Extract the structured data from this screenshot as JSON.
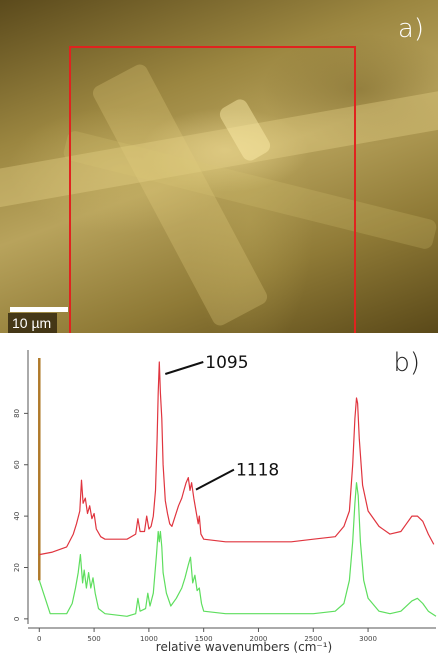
{
  "panel_a": {
    "label": "a)",
    "scale_bar_label": "10 µm",
    "roi_color": "#e0231f"
  },
  "panel_b": {
    "label": "b)",
    "annotation_1095": "1095",
    "annotation_1118": "1118"
  },
  "chart_data": {
    "type": "line",
    "xlabel": "relative wavenumbers (cm⁻¹)",
    "ylabel": "",
    "x_ticks": [
      0,
      500,
      1000,
      1500,
      2000,
      2500,
      3000
    ],
    "y_ticks": [
      0,
      20,
      40,
      60,
      80
    ],
    "xlim": [
      -30,
      3620
    ],
    "ylim": [
      -2,
      100
    ],
    "series": [
      {
        "color": "#e0353f",
        "points": [
          [
            0,
            25
          ],
          [
            120,
            26
          ],
          [
            250,
            28
          ],
          [
            310,
            33
          ],
          [
            340,
            37
          ],
          [
            370,
            42
          ],
          [
            385,
            54
          ],
          [
            400,
            45
          ],
          [
            420,
            47
          ],
          [
            440,
            41
          ],
          [
            460,
            44
          ],
          [
            480,
            39
          ],
          [
            500,
            41
          ],
          [
            520,
            35
          ],
          [
            560,
            32
          ],
          [
            600,
            31
          ],
          [
            700,
            31
          ],
          [
            800,
            31
          ],
          [
            880,
            33
          ],
          [
            900,
            39
          ],
          [
            920,
            34
          ],
          [
            960,
            34
          ],
          [
            980,
            40
          ],
          [
            1000,
            35
          ],
          [
            1020,
            36
          ],
          [
            1040,
            40
          ],
          [
            1060,
            50
          ],
          [
            1075,
            70
          ],
          [
            1085,
            88
          ],
          [
            1095,
            100
          ],
          [
            1105,
            88
          ],
          [
            1118,
            78
          ],
          [
            1130,
            60
          ],
          [
            1150,
            46
          ],
          [
            1170,
            41
          ],
          [
            1190,
            37
          ],
          [
            1210,
            36
          ],
          [
            1240,
            40
          ],
          [
            1270,
            44
          ],
          [
            1300,
            47
          ],
          [
            1320,
            50
          ],
          [
            1340,
            53
          ],
          [
            1360,
            55
          ],
          [
            1375,
            50
          ],
          [
            1390,
            53
          ],
          [
            1410,
            47
          ],
          [
            1430,
            42
          ],
          [
            1450,
            37
          ],
          [
            1460,
            40
          ],
          [
            1475,
            33
          ],
          [
            1500,
            31
          ],
          [
            1700,
            30
          ],
          [
            2000,
            30
          ],
          [
            2300,
            30
          ],
          [
            2500,
            31
          ],
          [
            2700,
            32
          ],
          [
            2780,
            36
          ],
          [
            2830,
            42
          ],
          [
            2860,
            60
          ],
          [
            2880,
            78
          ],
          [
            2895,
            86
          ],
          [
            2905,
            84
          ],
          [
            2920,
            70
          ],
          [
            2950,
            52
          ],
          [
            3000,
            42
          ],
          [
            3100,
            36
          ],
          [
            3200,
            33
          ],
          [
            3300,
            34
          ],
          [
            3350,
            37
          ],
          [
            3400,
            40
          ],
          [
            3450,
            40
          ],
          [
            3500,
            38
          ],
          [
            3550,
            33
          ],
          [
            3600,
            29
          ]
        ]
      },
      {
        "color": "#5ede5e",
        "points": [
          [
            0,
            15
          ],
          [
            100,
            2
          ],
          [
            250,
            2
          ],
          [
            300,
            6
          ],
          [
            330,
            12
          ],
          [
            355,
            18
          ],
          [
            375,
            25
          ],
          [
            395,
            14
          ],
          [
            410,
            19
          ],
          [
            430,
            12
          ],
          [
            450,
            18
          ],
          [
            470,
            12
          ],
          [
            490,
            16
          ],
          [
            510,
            10
          ],
          [
            540,
            4
          ],
          [
            600,
            2
          ],
          [
            800,
            1
          ],
          [
            880,
            2
          ],
          [
            900,
            8
          ],
          [
            920,
            3
          ],
          [
            970,
            4
          ],
          [
            990,
            10
          ],
          [
            1010,
            5
          ],
          [
            1040,
            10
          ],
          [
            1070,
            25
          ],
          [
            1085,
            34
          ],
          [
            1095,
            30
          ],
          [
            1105,
            34
          ],
          [
            1118,
            28
          ],
          [
            1130,
            18
          ],
          [
            1160,
            10
          ],
          [
            1200,
            5
          ],
          [
            1250,
            8
          ],
          [
            1300,
            12
          ],
          [
            1330,
            16
          ],
          [
            1360,
            21
          ],
          [
            1380,
            24
          ],
          [
            1400,
            14
          ],
          [
            1420,
            17
          ],
          [
            1440,
            11
          ],
          [
            1460,
            12
          ],
          [
            1480,
            6
          ],
          [
            1500,
            3
          ],
          [
            1700,
            2
          ],
          [
            2000,
            2
          ],
          [
            2300,
            2
          ],
          [
            2500,
            2
          ],
          [
            2700,
            3
          ],
          [
            2780,
            6
          ],
          [
            2830,
            15
          ],
          [
            2860,
            30
          ],
          [
            2880,
            45
          ],
          [
            2895,
            53
          ],
          [
            2910,
            48
          ],
          [
            2930,
            30
          ],
          [
            2960,
            15
          ],
          [
            3000,
            8
          ],
          [
            3100,
            3
          ],
          [
            3200,
            2
          ],
          [
            3300,
            3
          ],
          [
            3400,
            7
          ],
          [
            3450,
            8
          ],
          [
            3500,
            6
          ],
          [
            3550,
            3
          ],
          [
            3620,
            1
          ]
        ]
      }
    ],
    "annotations": [
      {
        "text": "1095",
        "x": 1095,
        "y": 100
      },
      {
        "text": "1118",
        "x": 1375,
        "y": 55
      }
    ]
  }
}
